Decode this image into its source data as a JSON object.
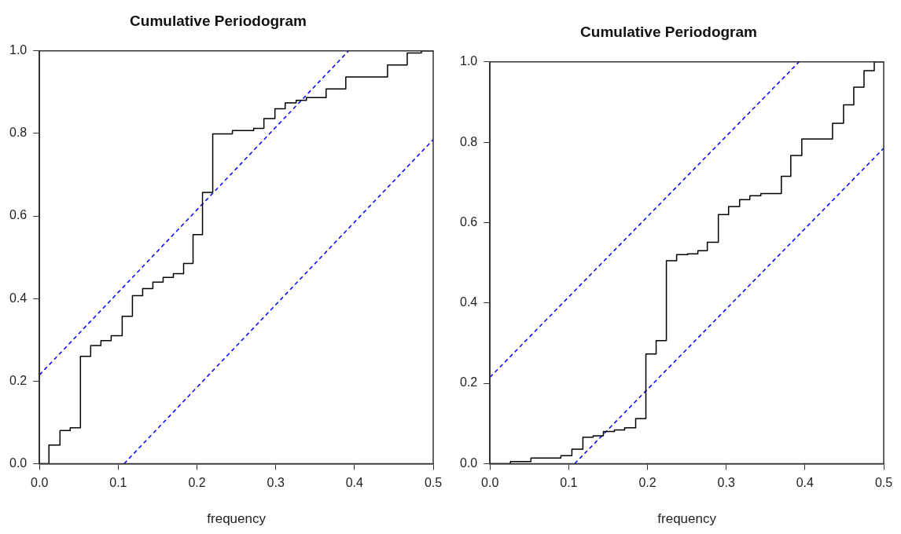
{
  "chart_data": [
    {
      "type": "step",
      "title": "Cumulative Periodogram",
      "xlabel": "frequency",
      "xlim": [
        0,
        0.5
      ],
      "ylim": [
        0,
        1
      ],
      "xticks": [
        {
          "value": 0,
          "label": "0.0"
        },
        {
          "value": 0.1,
          "label": "0.1"
        },
        {
          "value": 0.2,
          "label": "0.2"
        },
        {
          "value": 0.3,
          "label": "0.3"
        },
        {
          "value": 0.4,
          "label": "0.4"
        },
        {
          "value": 0.5,
          "label": "0.5"
        }
      ],
      "yticks": [
        {
          "value": 0,
          "label": "0.0"
        },
        {
          "value": 0.2,
          "label": "0.2"
        },
        {
          "value": 0.4,
          "label": "0.4"
        },
        {
          "value": 0.6,
          "label": "0.6"
        },
        {
          "value": 0.8,
          "label": "0.8"
        },
        {
          "value": 1,
          "label": "1.0"
        }
      ],
      "grid": false,
      "legend": false,
      "series": [
        {
          "type": "step",
          "color": "#000000",
          "x": [
            0,
            0.012,
            0.026,
            0.039,
            0.052,
            0.065,
            0.078,
            0.091,
            0.105,
            0.118,
            0.131,
            0.144,
            0.157,
            0.17,
            0.183,
            0.195,
            0.207,
            0.22,
            0.245,
            0.272,
            0.285,
            0.299,
            0.312,
            0.326,
            0.339,
            0.364,
            0.389,
            0.442,
            0.467,
            0.485,
            0.5
          ],
          "values": [
            0,
            0.045,
            0.08,
            0.087,
            0.26,
            0.286,
            0.298,
            0.31,
            0.357,
            0.407,
            0.424,
            0.44,
            0.451,
            0.46,
            0.485,
            0.555,
            0.657,
            0.799,
            0.807,
            0.812,
            0.836,
            0.86,
            0.874,
            0.88,
            0.887,
            0.908,
            0.937,
            0.966,
            0.995,
            1,
            1
          ]
        },
        {
          "type": "line",
          "color": "#0000ff",
          "line_style": "dashed",
          "x": [
            0,
            0.3925
          ],
          "values": [
            0.215,
            1
          ]
        },
        {
          "type": "line",
          "color": "#0000ff",
          "line_style": "dashed",
          "x": [
            0.1075,
            0.5
          ],
          "values": [
            0,
            0.785
          ]
        }
      ]
    },
    {
      "type": "step",
      "title": "Cumulative Periodogram",
      "xlabel": "frequency",
      "xlim": [
        0,
        0.5
      ],
      "ylim": [
        0,
        1
      ],
      "xticks": [
        {
          "value": 0,
          "label": "0.0"
        },
        {
          "value": 0.1,
          "label": "0.1"
        },
        {
          "value": 0.2,
          "label": "0.2"
        },
        {
          "value": 0.3,
          "label": "0.3"
        },
        {
          "value": 0.4,
          "label": "0.4"
        },
        {
          "value": 0.5,
          "label": "0.5"
        }
      ],
      "yticks": [
        {
          "value": 0,
          "label": "0.0"
        },
        {
          "value": 0.2,
          "label": "0.2"
        },
        {
          "value": 0.4,
          "label": "0.4"
        },
        {
          "value": 0.6,
          "label": "0.6"
        },
        {
          "value": 0.8,
          "label": "0.8"
        },
        {
          "value": 1,
          "label": "1.0"
        }
      ],
      "grid": false,
      "legend": false,
      "series": [
        {
          "type": "step",
          "color": "#000000",
          "x": [
            0,
            0.026,
            0.052,
            0.09,
            0.104,
            0.118,
            0.131,
            0.144,
            0.158,
            0.171,
            0.185,
            0.198,
            0.211,
            0.224,
            0.237,
            0.251,
            0.264,
            0.276,
            0.29,
            0.303,
            0.317,
            0.33,
            0.344,
            0.37,
            0.382,
            0.396,
            0.435,
            0.449,
            0.462,
            0.475,
            0.488,
            0.5
          ],
          "values": [
            0,
            0.005,
            0.014,
            0.02,
            0.036,
            0.066,
            0.069,
            0.08,
            0.084,
            0.089,
            0.112,
            0.273,
            0.306,
            0.505,
            0.52,
            0.522,
            0.53,
            0.551,
            0.62,
            0.64,
            0.657,
            0.667,
            0.672,
            0.715,
            0.767,
            0.808,
            0.847,
            0.893,
            0.937,
            0.978,
            1,
            1
          ]
        },
        {
          "type": "line",
          "color": "#0000ff",
          "line_style": "dashed",
          "x": [
            0,
            0.3925
          ],
          "values": [
            0.215,
            1
          ]
        },
        {
          "type": "line",
          "color": "#0000ff",
          "line_style": "dashed",
          "x": [
            0.1075,
            0.5
          ],
          "values": [
            0,
            0.785
          ]
        }
      ]
    }
  ]
}
